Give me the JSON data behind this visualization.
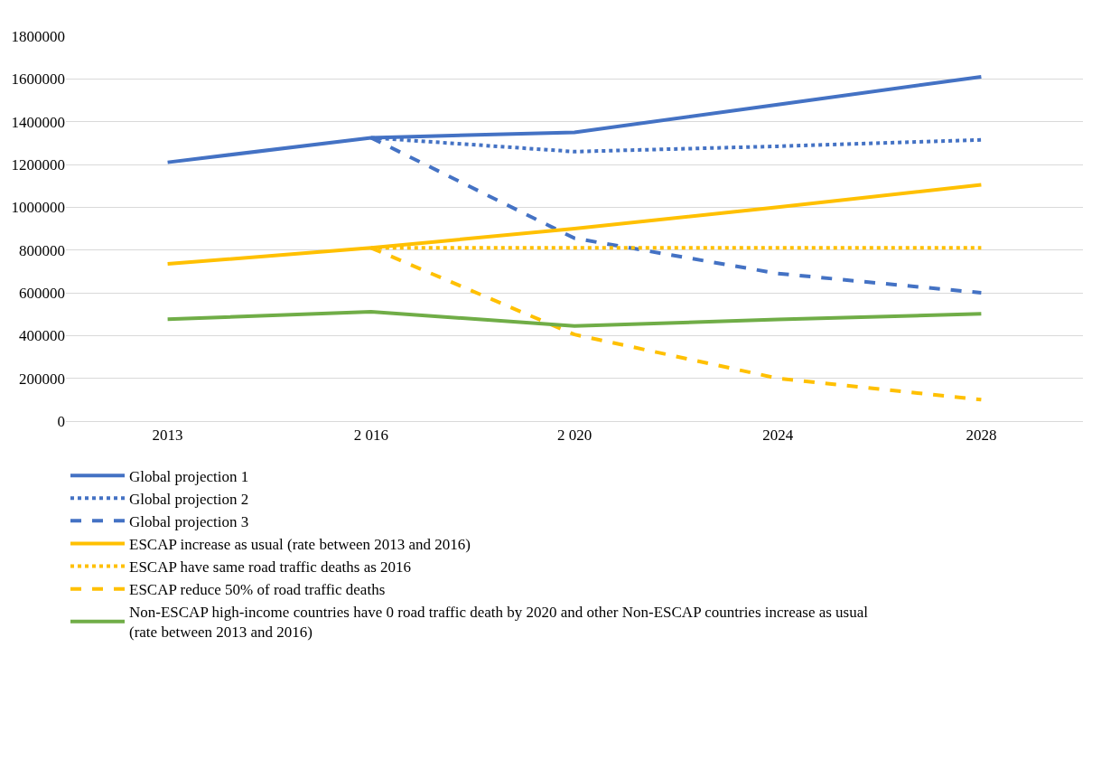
{
  "chart_data": {
    "type": "line",
    "categories": [
      "2013",
      "2 016",
      "2 020",
      "2024",
      "2028"
    ],
    "series": [
      {
        "name": "Global projection 1",
        "color": "#4472c4",
        "line_style": "solid",
        "values": [
          1210000,
          1325000,
          1350000,
          1480000,
          1610000
        ]
      },
      {
        "name": "Global projection 2",
        "color": "#4472c4",
        "line_style": "dotted",
        "values": [
          null,
          1325000,
          1260000,
          1285000,
          1315000
        ]
      },
      {
        "name": "Global projection 3",
        "color": "#4472c4",
        "line_style": "dashed",
        "values": [
          null,
          1325000,
          855000,
          690000,
          600000
        ]
      },
      {
        "name": "ESCAP increase as usual (rate between 2013 and 2016)",
        "color": "#ffc000",
        "line_style": "solid",
        "values": [
          735000,
          810000,
          900000,
          1000000,
          1105000
        ]
      },
      {
        "name": "ESCAP have same road traffic deaths as 2016",
        "color": "#ffc000",
        "line_style": "dotted",
        "values": [
          null,
          810000,
          810000,
          810000,
          810000
        ]
      },
      {
        "name": "ESCAP reduce 50% of road traffic deaths",
        "color": "#ffc000",
        "line_style": "dashed",
        "values": [
          null,
          810000,
          405000,
          200000,
          100000
        ]
      },
      {
        "name": "Non-ESCAP high-income countries have 0 road traffic death by 2020 and other Non-ESCAP countries increase as usual (rate between 2013 and 2016)",
        "color": "#70ad47",
        "line_style": "solid",
        "values": [
          476000,
          511000,
          445000,
          475000,
          502000
        ]
      }
    ],
    "ylim": [
      0,
      1800000
    ],
    "yticks": [
      0,
      200000,
      400000,
      600000,
      800000,
      1000000,
      1200000,
      1400000,
      1600000,
      1800000
    ],
    "grid": "y",
    "legend": "bottom",
    "marker": "none"
  }
}
